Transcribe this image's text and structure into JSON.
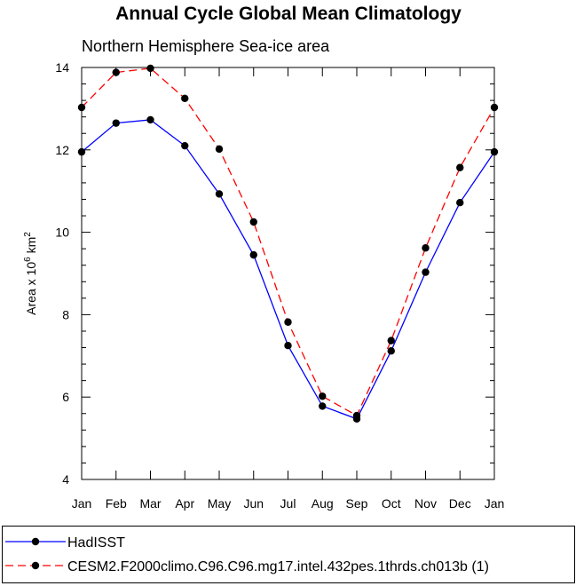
{
  "chart_data": {
    "type": "line",
    "title": "Annual Cycle Global Mean Climatology",
    "subtitle": "Northern Hemisphere Sea-ice area",
    "ylabel_parts": {
      "main": "Area x 10",
      "exp1": "6",
      "unit": " km",
      "exp2": "2"
    },
    "xlabel": "",
    "categories": [
      "Jan",
      "Feb",
      "Mar",
      "Apr",
      "May",
      "Jun",
      "Jul",
      "Aug",
      "Sep",
      "Oct",
      "Nov",
      "Dec",
      "Jan"
    ],
    "ylim": [
      4,
      14
    ],
    "yticks": [
      4,
      6,
      8,
      10,
      12,
      14
    ],
    "series": [
      {
        "name": "HadISST",
        "color": "#0000ff",
        "dash": "solid",
        "values": [
          11.95,
          12.65,
          12.73,
          12.1,
          10.93,
          9.45,
          7.25,
          5.78,
          5.47,
          7.12,
          9.03,
          10.72,
          11.95
        ]
      },
      {
        "name": "CESM2.F2000climo.C96.C96.mg17.intel.432pes.1thrds.ch013b (1)",
        "color": "#ff0000",
        "dash": "dashed",
        "values": [
          13.03,
          13.88,
          13.98,
          13.25,
          12.02,
          10.25,
          7.82,
          6.02,
          5.55,
          7.37,
          9.62,
          11.57,
          13.03
        ]
      }
    ],
    "legend_position": "bottom"
  }
}
